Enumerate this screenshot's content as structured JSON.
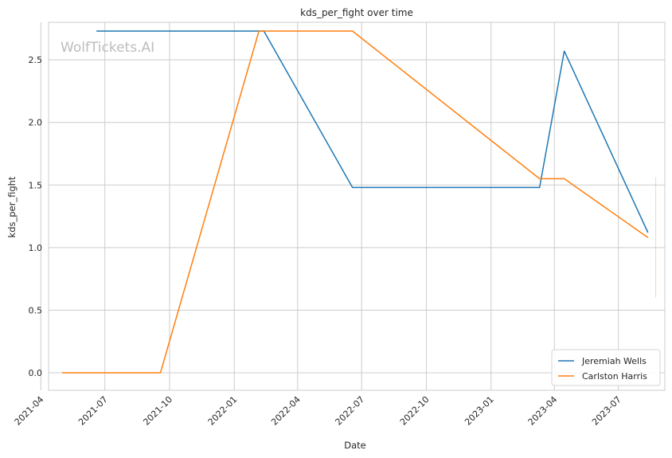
{
  "chart_data": {
    "type": "line",
    "title": "kds_per_fight over time",
    "xlabel": "Date",
    "ylabel": "kds_per_fight",
    "watermark": "WolfTickets.AI",
    "grid": true,
    "legend_position": "bottom-right",
    "xlim": [
      "2021-04-12",
      "2023-09-05"
    ],
    "ylim": [
      -0.14,
      2.8
    ],
    "x_ticks": [
      "2021-04",
      "2021-07",
      "2021-10",
      "2022-01",
      "2022-04",
      "2022-07",
      "2022-10",
      "2023-01",
      "2023-04",
      "2023-07"
    ],
    "y_ticks": [
      "0.0",
      "0.5",
      "1.0",
      "1.5",
      "2.0",
      "2.5"
    ],
    "series": [
      {
        "name": "Jeremiah Wells",
        "color": "#1f77b4",
        "x": [
          "2021-06-19",
          "2022-02-12",
          "2022-06-18",
          "2023-03-11",
          "2023-04-15",
          "2023-08-12"
        ],
        "y": [
          2.73,
          2.73,
          1.48,
          1.48,
          2.57,
          1.12
        ]
      },
      {
        "name": "Carlston Harris",
        "color": "#ff7f0e",
        "x": [
          "2021-05-01",
          "2021-09-18",
          "2022-02-05",
          "2022-06-18",
          "2023-03-11",
          "2023-04-15",
          "2023-08-12"
        ],
        "y": [
          0.0,
          0.0,
          2.73,
          2.73,
          1.55,
          1.55,
          1.08
        ]
      }
    ],
    "faint_vertical_marker": {
      "x": "2023-08-23",
      "y_range": [
        0.6,
        1.56
      ],
      "color": "#ff7f0e"
    }
  }
}
